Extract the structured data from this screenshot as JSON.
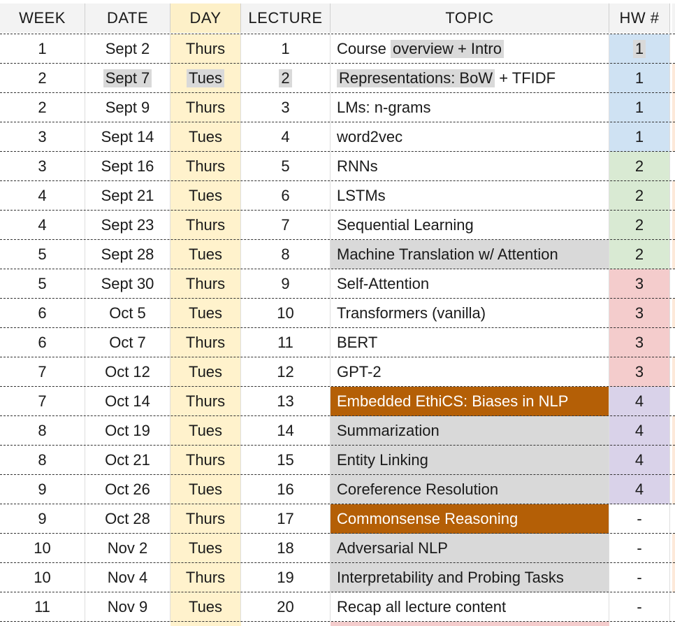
{
  "headers": {
    "week": "WEEK",
    "date": "DATE",
    "day": "DAY",
    "lecture": "LECTURE",
    "topic": "TOPIC",
    "hw": "HW #"
  },
  "colors": {
    "day_column": "#fff2cc",
    "topic_gray": "#d9d9d9",
    "topic_orange": "#b45f06",
    "hw1": "#cfe2f3",
    "hw2": "#d9ead3",
    "hw3": "#f4cccc",
    "hw4": "#d9d2e9"
  },
  "rows": [
    {
      "week": "1",
      "date": "Sept 2",
      "day": "Thurs",
      "lecture": "1",
      "topic_a": "Course ",
      "topic_b": "overview + Intro",
      "hw": "1",
      "hw_color": "blue"
    },
    {
      "week": "2",
      "date": "Sept 7",
      "day": "Tues",
      "lecture": "2",
      "topic_a": "Representations: BoW",
      "topic_b": " + TFIDF",
      "hw": "1",
      "hw_color": "blue"
    },
    {
      "week": "2",
      "date": "Sept 9",
      "day": "Thurs",
      "lecture": "3",
      "topic": "LMs: n-grams",
      "hw": "1",
      "hw_color": "blue"
    },
    {
      "week": "3",
      "date": "Sept 14",
      "day": "Tues",
      "lecture": "4",
      "topic": "word2vec",
      "hw": "1",
      "hw_color": "blue"
    },
    {
      "week": "3",
      "date": "Sept 16",
      "day": "Thurs",
      "lecture": "5",
      "topic": "RNNs",
      "hw": "2",
      "hw_color": "green"
    },
    {
      "week": "4",
      "date": "Sept 21",
      "day": "Tues",
      "lecture": "6",
      "topic": "LSTMs",
      "hw": "2",
      "hw_color": "green"
    },
    {
      "week": "4",
      "date": "Sept 23",
      "day": "Thurs",
      "lecture": "7",
      "topic": "Sequential Learning",
      "hw": "2",
      "hw_color": "green"
    },
    {
      "week": "5",
      "date": "Sept 28",
      "day": "Tues",
      "lecture": "8",
      "topic": "Machine Translation w/ Attention",
      "topic_style": "gray",
      "hw": "2",
      "hw_color": "green"
    },
    {
      "week": "5",
      "date": "Sept 30",
      "day": "Thurs",
      "lecture": "9",
      "topic": "Self-Attention",
      "hw": "3",
      "hw_color": "red"
    },
    {
      "week": "6",
      "date": "Oct 5",
      "day": "Tues",
      "lecture": "10",
      "topic": "Transformers (vanilla)",
      "hw": "3",
      "hw_color": "red"
    },
    {
      "week": "6",
      "date": "Oct 7",
      "day": "Thurs",
      "lecture": "11",
      "topic": "BERT",
      "hw": "3",
      "hw_color": "red"
    },
    {
      "week": "7",
      "date": "Oct 12",
      "day": "Tues",
      "lecture": "12",
      "topic": "GPT-2",
      "hw": "3",
      "hw_color": "red"
    },
    {
      "week": "7",
      "date": "Oct 14",
      "day": "Thurs",
      "lecture": "13",
      "topic": "Embedded EthiCS: Biases in NLP",
      "topic_style": "orange",
      "hw": "4",
      "hw_color": "purple"
    },
    {
      "week": "8",
      "date": "Oct 19",
      "day": "Tues",
      "lecture": "14",
      "topic": "Summarization",
      "topic_style": "gray",
      "hw": "4",
      "hw_color": "purple"
    },
    {
      "week": "8",
      "date": "Oct 21",
      "day": "Thurs",
      "lecture": "15",
      "topic": "Entity Linking",
      "topic_style": "gray",
      "hw": "4",
      "hw_color": "purple"
    },
    {
      "week": "9",
      "date": "Oct 26",
      "day": "Tues",
      "lecture": "16",
      "topic": "Coreference Resolution",
      "topic_style": "gray",
      "hw": "4",
      "hw_color": "purple"
    },
    {
      "week": "9",
      "date": "Oct 28",
      "day": "Thurs",
      "lecture": "17",
      "topic": "Commonsense Reasoning",
      "topic_style": "orange",
      "hw": "-",
      "hw_color": "none"
    },
    {
      "week": "10",
      "date": "Nov 2",
      "day": "Tues",
      "lecture": "18",
      "topic": "Adversarial NLP",
      "topic_style": "gray",
      "hw": "-",
      "hw_color": "none"
    },
    {
      "week": "10",
      "date": "Nov 4",
      "day": "Thurs",
      "lecture": "19",
      "topic": "Interpretability and Probing Tasks",
      "topic_style": "gray",
      "hw": "-",
      "hw_color": "none"
    },
    {
      "week": "11",
      "date": "Nov 9",
      "day": "Tues",
      "lecture": "20",
      "topic": "Recap all lecture content",
      "hw": "-",
      "hw_color": "none"
    }
  ]
}
